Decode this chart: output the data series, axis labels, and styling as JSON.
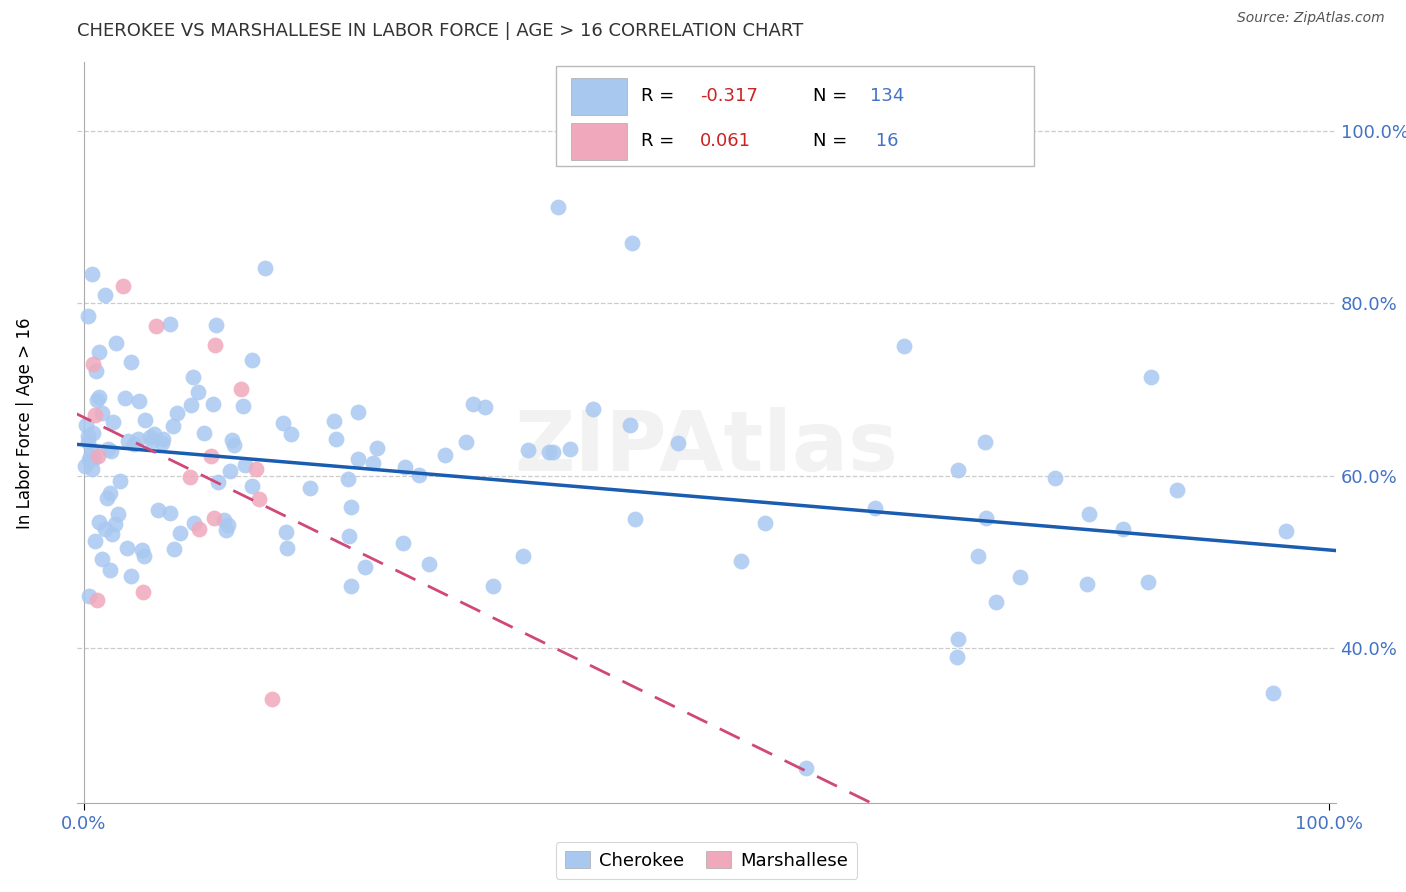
{
  "title": "CHEROKEE VS MARSHALLESE IN LABOR FORCE | AGE > 16 CORRELATION CHART",
  "source": "Source: ZipAtlas.com",
  "ylabel": "In Labor Force | Age > 16",
  "cherokee_color": "#A8C8F0",
  "marshallese_color": "#F0A8BC",
  "trend_cherokee_color": "#1A5CB0",
  "trend_marshallese_color": "#D04878",
  "watermark": "ZIPAtlas",
  "cherokee_R": -0.317,
  "cherokee_N": 134,
  "marshallese_R": 0.061,
  "marshallese_N": 16,
  "ytick_vals": [
    0.4,
    0.6,
    0.8,
    1.0
  ],
  "ytick_labels": [
    "40.0%",
    "60.0%",
    "80.0%",
    "100.0%"
  ],
  "xtick_vals": [
    0.0,
    1.0
  ],
  "xtick_labels": [
    "0.0%",
    "100.0%"
  ],
  "ylim": [
    0.22,
    1.08
  ],
  "xlim": [
    -0.005,
    1.005
  ],
  "tick_color": "#4472C4",
  "grid_color": "#CCCCCC",
  "legend_text_color": "#4472C4",
  "legend_R_color": "#CC0000",
  "title_color": "#333333"
}
